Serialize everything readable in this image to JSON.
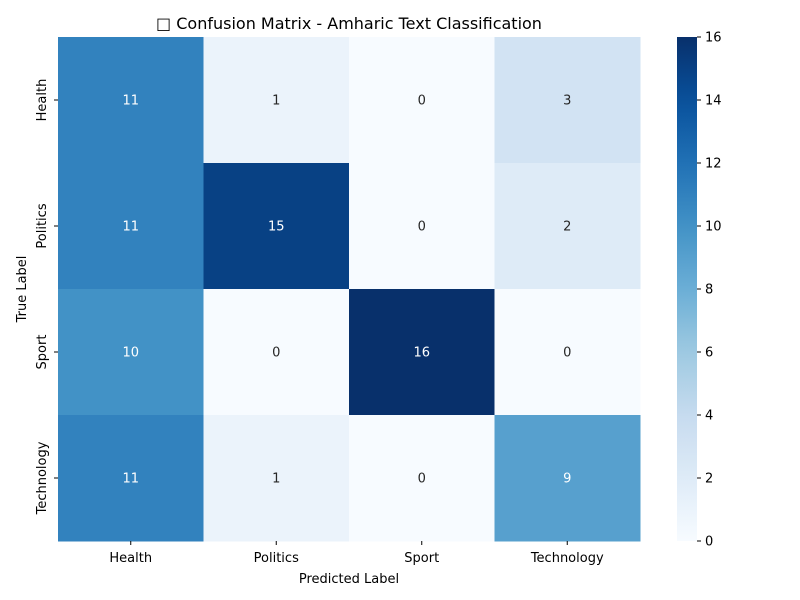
{
  "chart_data": {
    "type": "heatmap",
    "title": "□ Confusion Matrix - Amharic Text Classification",
    "xlabel": "Predicted Label",
    "ylabel": "True Label",
    "x_categories": [
      "Health",
      "Politics",
      "Sport",
      "Technology"
    ],
    "y_categories": [
      "Health",
      "Politics",
      "Sport",
      "Technology"
    ],
    "values": [
      [
        11,
        1,
        0,
        3
      ],
      [
        11,
        15,
        0,
        2
      ],
      [
        10,
        0,
        16,
        0
      ],
      [
        11,
        1,
        0,
        9
      ]
    ],
    "colormap": "Blues",
    "vmin": 0,
    "vmax": 16,
    "colorbar_ticks": [
      0,
      2,
      4,
      6,
      8,
      10,
      12,
      14,
      16
    ],
    "annotations": true
  }
}
